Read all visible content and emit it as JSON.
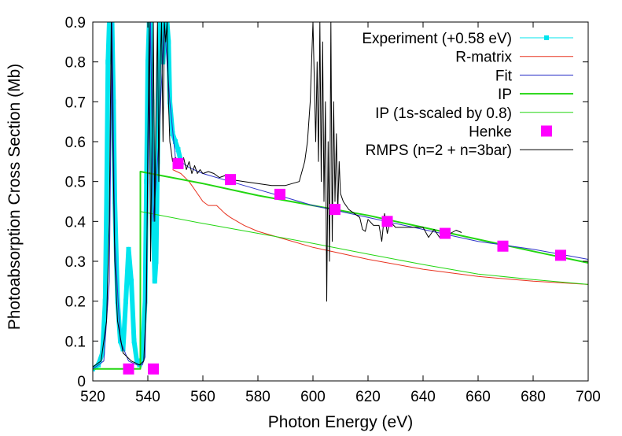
{
  "chart_data": {
    "type": "line",
    "xlabel": "Photon Energy (eV)",
    "ylabel": "Photoabsorption Cross Section (Mb)",
    "xlim": [
      520,
      700
    ],
    "ylim": [
      0,
      0.9
    ],
    "xticks": [
      520,
      540,
      560,
      580,
      600,
      620,
      640,
      660,
      680,
      700
    ],
    "yticks": [
      0,
      0.1,
      0.2,
      0.3,
      0.4,
      0.5,
      0.6,
      0.7,
      0.8,
      0.9
    ],
    "xtick_labels": [
      "520",
      "540",
      "560",
      "580",
      "600",
      "620",
      "640",
      "660",
      "680",
      "700"
    ],
    "ytick_labels": [
      "0",
      "0.1",
      "0.2",
      "0.3",
      "0.4",
      "0.5",
      "0.6",
      "0.7",
      "0.8",
      "0.9"
    ],
    "legend_position": "top-right",
    "grid": false,
    "series": [
      {
        "name": "Experiment (+0.58 eV)",
        "color": "#00e5ee",
        "style": "linespoints",
        "x": [
          520,
          522,
          523.5,
          524.5,
          525,
          525.5,
          526,
          526.5,
          527,
          527.5,
          528,
          529,
          530,
          531,
          532,
          533,
          534,
          535,
          536,
          537,
          538,
          539,
          539.5,
          540,
          540.5,
          541,
          541.5,
          542,
          542.5,
          543,
          543.5,
          544,
          544.5,
          545,
          545.5,
          546,
          546.5,
          547,
          547.5,
          548,
          549,
          550,
          551,
          552
        ],
        "y": [
          0.03,
          0.04,
          0.07,
          0.2,
          0.45,
          0.8,
          0.9,
          0.9,
          0.9,
          0.7,
          0.45,
          0.2,
          0.1,
          0.08,
          0.2,
          0.33,
          0.25,
          0.1,
          0.05,
          0.04,
          0.06,
          0.2,
          0.5,
          0.8,
          0.9,
          0.9,
          0.7,
          0.4,
          0.25,
          0.3,
          0.55,
          0.8,
          0.9,
          0.9,
          0.8,
          0.85,
          0.9,
          0.9,
          0.85,
          0.7,
          0.62,
          0.6,
          0.58,
          0.55
        ]
      },
      {
        "name": "R-matrix",
        "color": "#e8321f",
        "style": "line",
        "x": [
          549,
          552,
          555,
          558,
          560,
          562,
          565,
          568,
          570,
          575,
          580,
          590,
          600,
          620,
          640,
          660,
          680,
          700
        ],
        "y": [
          0.53,
          0.52,
          0.5,
          0.47,
          0.45,
          0.44,
          0.44,
          0.42,
          0.41,
          0.39,
          0.375,
          0.355,
          0.335,
          0.305,
          0.28,
          0.262,
          0.25,
          0.242
        ]
      },
      {
        "name": "Fit",
        "color": "#2a30c8",
        "style": "line",
        "x": [
          520,
          524,
          526,
          527,
          528,
          530,
          533,
          536,
          538,
          539,
          540,
          541,
          542,
          544,
          546,
          548,
          550,
          555,
          560,
          570,
          580,
          590,
          600,
          620,
          640,
          660,
          680,
          700
        ],
        "y": [
          0.03,
          0.05,
          0.25,
          0.9,
          0.35,
          0.1,
          0.05,
          0.04,
          0.04,
          0.06,
          0.5,
          0.9,
          0.4,
          0.6,
          0.9,
          0.7,
          0.56,
          0.535,
          0.52,
          0.5,
          0.48,
          0.46,
          0.44,
          0.41,
          0.38,
          0.35,
          0.33,
          0.305
        ]
      },
      {
        "name": "IP",
        "color": "#22d611",
        "style": "line",
        "x": [
          520,
          537.3,
          537.3,
          560,
          580,
          600,
          620,
          640,
          660,
          680,
          700
        ],
        "y": [
          0.03,
          0.03,
          0.525,
          0.495,
          0.465,
          0.44,
          0.415,
          0.385,
          0.355,
          0.325,
          0.296
        ]
      },
      {
        "name": "IP (1s-scaled by 0.8)",
        "color": "#22d611",
        "style": "thin-line",
        "x": [
          537.3,
          537.3,
          560,
          580,
          600,
          620,
          640,
          660,
          680,
          700
        ],
        "y": [
          0.03,
          0.425,
          0.395,
          0.37,
          0.345,
          0.318,
          0.292,
          0.268,
          0.254,
          0.242
        ]
      },
      {
        "name": "Henke",
        "color": "#ff00ff",
        "style": "points",
        "x": [
          533,
          542,
          551,
          570,
          588,
          608,
          627,
          648,
          669,
          690
        ],
        "y": [
          0.03,
          0.03,
          0.545,
          0.505,
          0.468,
          0.43,
          0.4,
          0.37,
          0.338,
          0.315
        ]
      },
      {
        "name": "RMPS (n=2 + n=3bar)",
        "color": "#000000",
        "style": "line",
        "x": [
          520,
          523,
          525,
          526,
          526.7,
          527.3,
          528,
          529,
          531,
          534,
          537,
          538.5,
          539.5,
          540,
          540.5,
          541,
          541.5,
          542,
          542.5,
          543,
          543.5,
          544,
          544.5,
          545,
          545.5,
          546,
          546.5,
          547,
          547.5,
          548,
          549,
          550,
          552,
          553,
          554,
          555,
          556,
          557,
          558,
          559,
          560,
          562,
          564,
          566,
          568,
          570,
          575,
          580,
          585,
          590,
          595,
          597,
          598,
          599,
          600,
          601,
          601.5,
          602,
          602.5,
          603,
          603.5,
          604,
          604.5,
          605,
          605.5,
          606,
          606.5,
          607,
          607.5,
          608,
          608.5,
          609,
          609.5,
          610,
          611,
          612,
          613,
          615,
          617,
          618,
          619,
          620,
          622,
          624,
          625,
          626,
          627,
          628,
          630,
          635,
          640,
          642,
          644,
          646,
          648,
          650,
          652,
          654
        ],
        "y": [
          0.035,
          0.05,
          0.15,
          0.4,
          0.9,
          0.6,
          0.3,
          0.15,
          0.07,
          0.05,
          0.04,
          0.05,
          0.2,
          0.6,
          0.9,
          0.3,
          0.6,
          0.9,
          0.4,
          0.7,
          0.9,
          0.5,
          0.8,
          0.9,
          0.6,
          0.9,
          0.85,
          0.9,
          0.7,
          0.6,
          0.55,
          0.56,
          0.54,
          0.56,
          0.53,
          0.55,
          0.52,
          0.54,
          0.52,
          0.53,
          0.52,
          0.525,
          0.52,
          0.51,
          0.515,
          0.505,
          0.5,
          0.495,
          0.49,
          0.49,
          0.5,
          0.55,
          0.6,
          0.7,
          0.9,
          0.6,
          0.8,
          0.55,
          0.9,
          0.5,
          0.85,
          0.45,
          0.7,
          0.2,
          0.6,
          0.3,
          0.9,
          0.35,
          0.7,
          0.45,
          0.62,
          0.42,
          0.55,
          0.47,
          0.45,
          0.44,
          0.43,
          0.42,
          0.41,
          0.38,
          0.375,
          0.405,
          0.39,
          0.39,
          0.35,
          0.42,
          0.37,
          0.4,
          0.385,
          0.385,
          0.385,
          0.36,
          0.38,
          0.36,
          0.375,
          0.37,
          0.378,
          0.372
        ]
      }
    ]
  }
}
